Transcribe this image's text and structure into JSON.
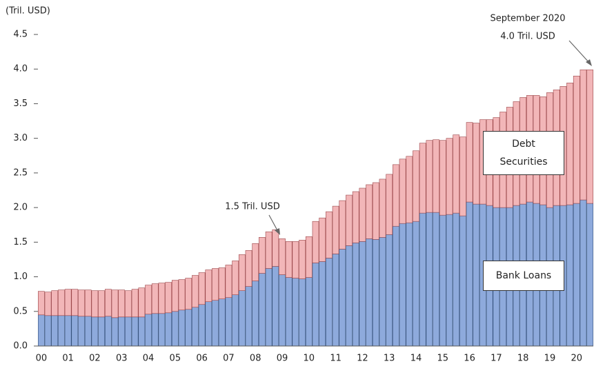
{
  "chart_data": {
    "type": "stacked_bar",
    "y_label": "(Tril. USD)",
    "annotations": [
      "September 2020",
      "4.0 Tril. USD",
      "1.5 Tril. USD"
    ],
    "categories": [
      "00",
      null,
      null,
      null,
      "01",
      null,
      null,
      null,
      "02",
      null,
      null,
      null,
      "03",
      null,
      null,
      null,
      "04",
      null,
      null,
      null,
      "05",
      null,
      null,
      null,
      "06",
      null,
      null,
      null,
      "07",
      null,
      null,
      null,
      "08",
      null,
      null,
      null,
      "09",
      null,
      null,
      null,
      "10",
      null,
      null,
      null,
      "11",
      null,
      null,
      null,
      "12",
      null,
      null,
      null,
      "13",
      null,
      null,
      null,
      "14",
      null,
      null,
      null,
      "15",
      null,
      null,
      null,
      "16",
      null,
      null,
      null,
      "17",
      null,
      null,
      null,
      "18",
      null,
      null,
      null,
      "19",
      null,
      null,
      null,
      "20",
      null,
      null
    ],
    "series": [
      {
        "name": "Bank Loans",
        "color": "#8eaadc",
        "stroke": "#34507a",
        "values": [
          0.45,
          0.44,
          0.44,
          0.44,
          0.44,
          0.44,
          0.43,
          0.43,
          0.42,
          0.42,
          0.43,
          0.41,
          0.42,
          0.42,
          0.42,
          0.42,
          0.46,
          0.47,
          0.47,
          0.48,
          0.5,
          0.52,
          0.53,
          0.56,
          0.6,
          0.64,
          0.66,
          0.68,
          0.7,
          0.74,
          0.8,
          0.86,
          0.94,
          1.05,
          1.12,
          1.15,
          1.03,
          0.99,
          0.98,
          0.97,
          0.99,
          1.2,
          1.22,
          1.27,
          1.33,
          1.4,
          1.45,
          1.49,
          1.51,
          1.55,
          1.54,
          1.57,
          1.61,
          1.73,
          1.77,
          1.78,
          1.8,
          1.92,
          1.93,
          1.93,
          1.89,
          1.9,
          1.92,
          1.88,
          2.08,
          2.05,
          2.05,
          2.03,
          2.0,
          2.0,
          2.0,
          2.03,
          2.05,
          2.08,
          2.06,
          2.04,
          2.0,
          2.03,
          2.03,
          2.04,
          2.06,
          2.11,
          2.06
        ]
      },
      {
        "name": "Debt Securities",
        "color": "#f2b6b8",
        "stroke": "#9a4548",
        "values": [
          0.34,
          0.34,
          0.36,
          0.37,
          0.38,
          0.38,
          0.38,
          0.38,
          0.38,
          0.38,
          0.39,
          0.4,
          0.39,
          0.38,
          0.4,
          0.42,
          0.42,
          0.43,
          0.44,
          0.44,
          0.45,
          0.44,
          0.45,
          0.46,
          0.46,
          0.46,
          0.46,
          0.45,
          0.47,
          0.49,
          0.52,
          0.52,
          0.54,
          0.52,
          0.53,
          0.53,
          0.52,
          0.52,
          0.53,
          0.56,
          0.59,
          0.6,
          0.63,
          0.67,
          0.69,
          0.7,
          0.73,
          0.74,
          0.77,
          0.78,
          0.82,
          0.84,
          0.87,
          0.89,
          0.93,
          0.96,
          1.02,
          1.01,
          1.04,
          1.05,
          1.08,
          1.1,
          1.13,
          1.14,
          1.15,
          1.17,
          1.22,
          1.24,
          1.3,
          1.38,
          1.45,
          1.5,
          1.54,
          1.54,
          1.56,
          1.56,
          1.66,
          1.67,
          1.72,
          1.76,
          1.84,
          1.88,
          1.93
        ]
      }
    ],
    "ylim": [
      0,
      4.5
    ],
    "yticks": [
      {
        "value": 0,
        "label": "0.0"
      },
      0.5,
      {
        "value": 1,
        "label": "1.0"
      },
      1.5,
      {
        "value": 2,
        "label": "2.0"
      },
      2.5,
      {
        "value": 3,
        "label": "3.0"
      },
      3.5,
      {
        "value": 4,
        "label": "4.0"
      },
      4.5
    ]
  }
}
